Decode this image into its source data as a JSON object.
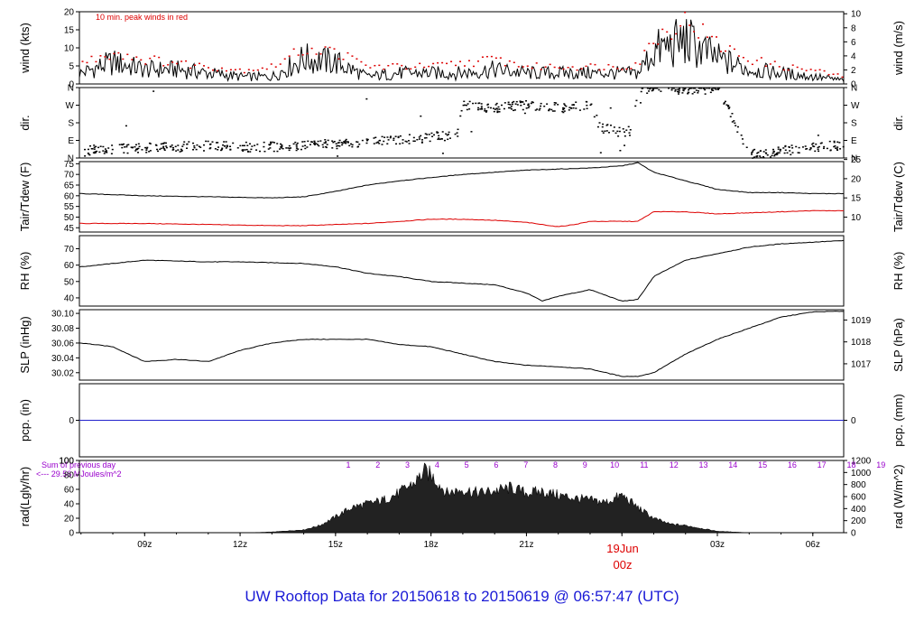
{
  "title": "UW Rooftop Data for 20150618  to  20150619 @ 06:57:47  (UTC)",
  "colors": {
    "primary": "#000000",
    "accent_red": "#dd0000",
    "pcp_line": "#2222cc",
    "purple": "#9900cc",
    "title": "#1a1ad6"
  },
  "annotations": {
    "peak_wind_note": "10 min. peak winds in red",
    "rad_sum_line1": "Sum of previous day",
    "rad_sum_line2": "<--- 29.56 MJoules/m^2",
    "date_label": "19Jun",
    "date_sub": "00z",
    "solar_hours": [
      "1",
      "2",
      "3",
      "4",
      "5",
      "6",
      "7",
      "8",
      "9",
      "10",
      "11",
      "12",
      "13",
      "14",
      "15",
      "16",
      "17",
      "18",
      "19"
    ]
  },
  "x_axis": {
    "labels": [
      "09z",
      "12z",
      "15z",
      "18z",
      "21z",
      "00z",
      "03z",
      "06z"
    ],
    "label_hours": [
      9,
      12,
      15,
      18,
      21,
      24,
      27,
      30
    ],
    "range_hours": [
      6.95,
      30.97
    ]
  },
  "chart_data": [
    {
      "type": "line",
      "panel": "wind",
      "ylabel": "wind (kts)",
      "ylabel_right": "wind (m/s)",
      "ylim": [
        0,
        20
      ],
      "yticks": [
        0,
        5,
        10,
        15,
        20
      ],
      "yticks_right": [
        0,
        2,
        4,
        6,
        8,
        10
      ],
      "series": [
        {
          "role": "wind",
          "x": [
            7,
            8,
            9,
            10,
            11,
            12,
            13,
            14,
            15,
            16,
            17,
            18,
            19,
            20,
            21,
            22,
            23,
            24,
            24.5,
            25,
            26,
            27,
            28,
            29,
            30,
            31
          ],
          "y": [
            3,
            6,
            4,
            4,
            3,
            2,
            2,
            7,
            6,
            2,
            3,
            3,
            3,
            4,
            3,
            3,
            3,
            3,
            3,
            9,
            12,
            7,
            4,
            3,
            2,
            1
          ]
        },
        {
          "role": "peak",
          "x": [
            7,
            8,
            9,
            10,
            11,
            12,
            13,
            14,
            15,
            16,
            17,
            18,
            19,
            20,
            21,
            22,
            23,
            24,
            24.5,
            25,
            26,
            27,
            28,
            29,
            30,
            31
          ],
          "y": [
            6,
            9,
            7,
            6,
            5,
            4,
            5,
            10,
            9,
            5,
            5,
            5,
            6,
            7,
            5,
            5,
            5,
            5,
            6,
            13,
            18,
            11,
            7,
            5,
            4,
            2
          ]
        }
      ]
    },
    {
      "type": "scatter",
      "panel": "direction",
      "ylabel": "dir.",
      "ylabel_right": "dir.",
      "ytick_labels": [
        "N",
        "E",
        "S",
        "W",
        "N"
      ],
      "ylim": [
        0,
        360
      ],
      "x": [
        7,
        8,
        9,
        10,
        11,
        12,
        13,
        14,
        15,
        16,
        17,
        18,
        18.8,
        19,
        20,
        21,
        22,
        23,
        23.3,
        23.8,
        24.3,
        24.5,
        25,
        26,
        27,
        28,
        29,
        30,
        31
      ],
      "y": [
        40,
        50,
        55,
        60,
        65,
        60,
        60,
        70,
        75,
        85,
        95,
        110,
        125,
        270,
        260,
        275,
        260,
        270,
        160,
        140,
        140,
        360,
        355,
        355,
        355,
        20,
        40,
        60,
        70
      ]
    },
    {
      "type": "line",
      "panel": "temperature",
      "ylabel": "Tair/Tdew (F)",
      "ylabel_right": "Tair/Tdew (C)",
      "ylim": [
        43,
        76
      ],
      "yticks": [
        45,
        50,
        55,
        60,
        65,
        70,
        75
      ],
      "yticks_right": [
        10,
        15,
        20,
        25
      ],
      "series": [
        {
          "role": "tair",
          "x": [
            7,
            9,
            11,
            13,
            14,
            15,
            16,
            17,
            18,
            19,
            20,
            21,
            22,
            23,
            24,
            24.5,
            25,
            26,
            27,
            28,
            29,
            30,
            31
          ],
          "y": [
            61,
            60,
            59.5,
            59,
            59.5,
            62,
            65,
            67,
            68.5,
            70,
            71,
            72,
            72.5,
            73,
            74,
            75.5,
            71,
            67,
            63,
            61.5,
            61.5,
            61,
            61
          ]
        },
        {
          "role": "tdew",
          "x": [
            7,
            9,
            11,
            13,
            14,
            15,
            16,
            17,
            18,
            19,
            20,
            21,
            22,
            22.5,
            23,
            24,
            24.5,
            25,
            26,
            27,
            28,
            29,
            30,
            31
          ],
          "y": [
            47,
            47,
            46.5,
            46,
            46,
            46.5,
            47,
            48,
            49,
            49,
            48.5,
            47.5,
            45.5,
            46.5,
            48,
            48,
            48,
            52.5,
            52.5,
            51.5,
            52,
            52.5,
            53,
            53
          ]
        }
      ]
    },
    {
      "type": "line",
      "panel": "humidity",
      "ylabel": "RH (%)",
      "ylabel_right": "RH (%)",
      "ylim": [
        35,
        78
      ],
      "yticks": [
        40,
        50,
        60,
        70
      ],
      "series": [
        {
          "role": "rh",
          "x": [
            7,
            8,
            9,
            10,
            11,
            12,
            13,
            14,
            15,
            16,
            17,
            18,
            19,
            20,
            21,
            21.5,
            22,
            23,
            24,
            24.5,
            25,
            26,
            27,
            28,
            29,
            30,
            31
          ],
          "y": [
            59,
            61,
            63,
            62.5,
            62,
            62,
            61.5,
            61,
            59,
            55,
            53,
            50,
            49,
            48,
            43,
            38,
            41,
            45,
            38,
            39,
            53,
            63,
            67,
            71,
            73,
            74,
            75
          ]
        }
      ]
    },
    {
      "type": "line",
      "panel": "pressure",
      "ylabel": "SLP (inHg)",
      "ylabel_right": "SLP (hPa)",
      "ylim": [
        30.01,
        30.105
      ],
      "yticks": [
        30.02,
        30.04,
        30.06,
        30.08,
        30.1
      ],
      "ytick_labels": [
        "30.02",
        "30.04",
        "30.06",
        "30.08",
        "30.10"
      ],
      "yticks_right": [
        1017,
        1018,
        1019
      ],
      "series": [
        {
          "role": "slp",
          "x": [
            7,
            8,
            9,
            10,
            11,
            12,
            13,
            14,
            15,
            16,
            17,
            18,
            19,
            20,
            21,
            22,
            23,
            24,
            24.5,
            25,
            26,
            27,
            28,
            29,
            30,
            31
          ],
          "y": [
            30.06,
            30.055,
            30.035,
            30.038,
            30.035,
            30.05,
            30.06,
            30.065,
            30.065,
            30.065,
            30.058,
            30.055,
            30.045,
            30.035,
            30.03,
            30.028,
            30.025,
            30.015,
            30.015,
            30.02,
            30.045,
            30.065,
            30.08,
            30.095,
            30.102,
            30.103
          ]
        }
      ]
    },
    {
      "type": "line",
      "panel": "precipitation",
      "ylabel": "pcp. (in)",
      "ylabel_right": "pcp. (mm)",
      "yticks": [
        0
      ],
      "yticks_right": [
        0
      ],
      "series": [
        {
          "role": "pcp",
          "x": [
            6.95,
            30.97
          ],
          "y": [
            0,
            0
          ]
        }
      ]
    },
    {
      "type": "area",
      "panel": "radiation",
      "ylabel": "rad(Lgly/hr)",
      "ylabel_right": "rad (W/m^2)",
      "ylim": [
        0,
        100
      ],
      "yticks": [
        0,
        20,
        40,
        60,
        80,
        100
      ],
      "yticks_right": [
        0,
        200,
        400,
        600,
        800,
        1000,
        1200
      ],
      "series": [
        {
          "role": "rad",
          "x": [
            12.3,
            13,
            14,
            14.5,
            15,
            15.5,
            16,
            16.5,
            17,
            17.5,
            17.8,
            18,
            18.3,
            18.5,
            19,
            19.5,
            20,
            20.5,
            21,
            21.5,
            22,
            22.5,
            23,
            23.5,
            24,
            24.5,
            25,
            25.5,
            26,
            26.5,
            27,
            27.5,
            28
          ],
          "y": [
            0,
            1,
            4,
            10,
            22,
            35,
            40,
            45,
            55,
            70,
            85,
            80,
            65,
            55,
            60,
            55,
            58,
            62,
            55,
            57,
            52,
            48,
            45,
            42,
            52,
            35,
            20,
            12,
            10,
            6,
            2,
            1,
            0
          ]
        }
      ]
    }
  ]
}
